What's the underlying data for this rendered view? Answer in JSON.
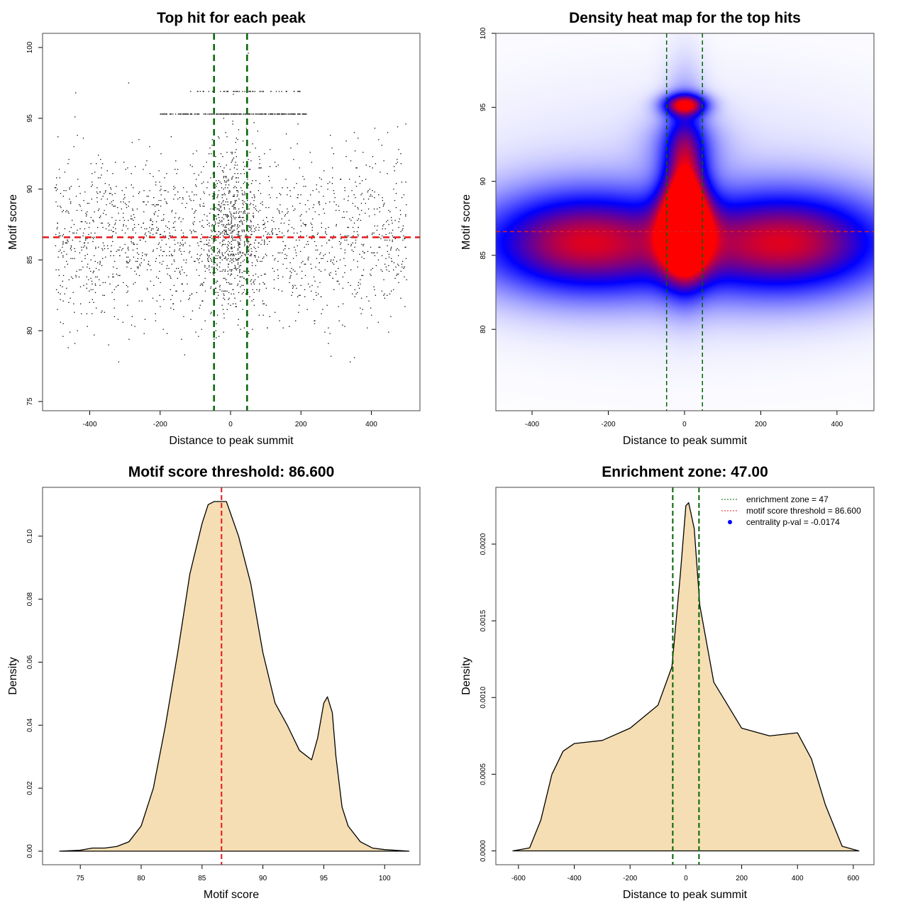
{
  "chart_data": [
    {
      "type": "scatter",
      "title": "Top hit for each peak",
      "xlabel": "Distance to peak summit",
      "ylabel": "Motif score",
      "xlim": [
        -534,
        538
      ],
      "ylim": [
        74.35,
        101
      ],
      "xticks": [
        -400,
        -200,
        0,
        200,
        400
      ],
      "yticks": [
        75,
        80,
        85,
        90,
        95,
        100
      ],
      "point_summary": {
        "x_range": [
          -500,
          500
        ],
        "y_range": [
          75,
          100
        ],
        "dense_rows": [
          95.3,
          96.9
        ],
        "n_approx": 3000
      },
      "vlines": [
        -47,
        47
      ],
      "hline": 86.6,
      "colors": {
        "points": "#000000",
        "vlines": "#006400",
        "hline": "#e31a1c"
      }
    },
    {
      "type": "heatmap",
      "title": "Density heat map for the top hits",
      "xlabel": "Distance to peak summit",
      "ylabel": "Motif score",
      "xlim": [
        -495,
        497
      ],
      "ylim": [
        74.5,
        100
      ],
      "xticks": [
        -400,
        -200,
        0,
        200,
        400
      ],
      "yticks": [
        80,
        85,
        90,
        95,
        100
      ],
      "vlines": [
        -47,
        47
      ],
      "hline": 86.6,
      "colors": {
        "low": "#ffffff",
        "mid": "#0000ff",
        "high": "#ff0000",
        "vlines": "#006400",
        "hline": "#e31a1c"
      }
    },
    {
      "type": "area",
      "title": "Motif score threshold: 86.600",
      "xlabel": "Motif score",
      "ylabel": "Density",
      "xlim": [
        71.9,
        102.9
      ],
      "ylim": [
        -0.0043,
        0.1155
      ],
      "xticks": [
        75,
        80,
        85,
        90,
        95,
        100
      ],
      "yticks": [
        "0.00",
        "0.02",
        "0.04",
        "0.06",
        "0.08",
        "0.10"
      ],
      "x": [
        73.3,
        75,
        76,
        77,
        78,
        79,
        80,
        81,
        82,
        83,
        84,
        85,
        85.5,
        86,
        87,
        88,
        89,
        90,
        91,
        92,
        93,
        94,
        94.5,
        95,
        95.3,
        95.7,
        96,
        96.5,
        97,
        98,
        99,
        100,
        102
      ],
      "y": [
        0,
        0.0003,
        0.001,
        0.001,
        0.0015,
        0.003,
        0.008,
        0.02,
        0.04,
        0.063,
        0.088,
        0.104,
        0.11,
        0.111,
        0.111,
        0.1,
        0.085,
        0.063,
        0.047,
        0.04,
        0.032,
        0.029,
        0.036,
        0.047,
        0.049,
        0.044,
        0.03,
        0.014,
        0.008,
        0.003,
        0.001,
        0.0005,
        0
      ],
      "vline": 86.6,
      "colors": {
        "fill": "#f5deb3",
        "vline": "#e31a1c"
      }
    },
    {
      "type": "area",
      "title": "Enrichment zone: 47.00",
      "xlabel": "Distance to peak summit",
      "ylabel": "Density",
      "xlim": [
        -681,
        674
      ],
      "ylim": [
        -9e-05,
        0.00237
      ],
      "xticks": [
        -600,
        -400,
        -200,
        0,
        200,
        400,
        600
      ],
      "yticks": [
        "0.0000",
        "0.0005",
        "0.0010",
        "0.0015",
        "0.0020"
      ],
      "x": [
        -620,
        -560,
        -520,
        -480,
        -440,
        -400,
        -300,
        -200,
        -100,
        -50,
        -20,
        0,
        10,
        30,
        50,
        100,
        200,
        300,
        400,
        450,
        500,
        560,
        620
      ],
      "y": [
        0,
        2e-05,
        0.0002,
        0.0005,
        0.00065,
        0.0007,
        0.00072,
        0.0008,
        0.00095,
        0.0012,
        0.0018,
        0.00225,
        0.00227,
        0.0021,
        0.0016,
        0.0011,
        0.0008,
        0.00075,
        0.00077,
        0.0006,
        0.0003,
        3e-05,
        0
      ],
      "vlines": [
        -47,
        47
      ],
      "legend": [
        "enrichment zone = 47",
        "motif score threshold = 86.600",
        "centrality p-val = -0.0174"
      ],
      "legend_position": "top-right",
      "colors": {
        "fill": "#f5deb3",
        "vlines": "#006400",
        "legend1": "#006400",
        "legend2": "#e31a1c",
        "legend3": "#0000ff"
      }
    }
  ]
}
